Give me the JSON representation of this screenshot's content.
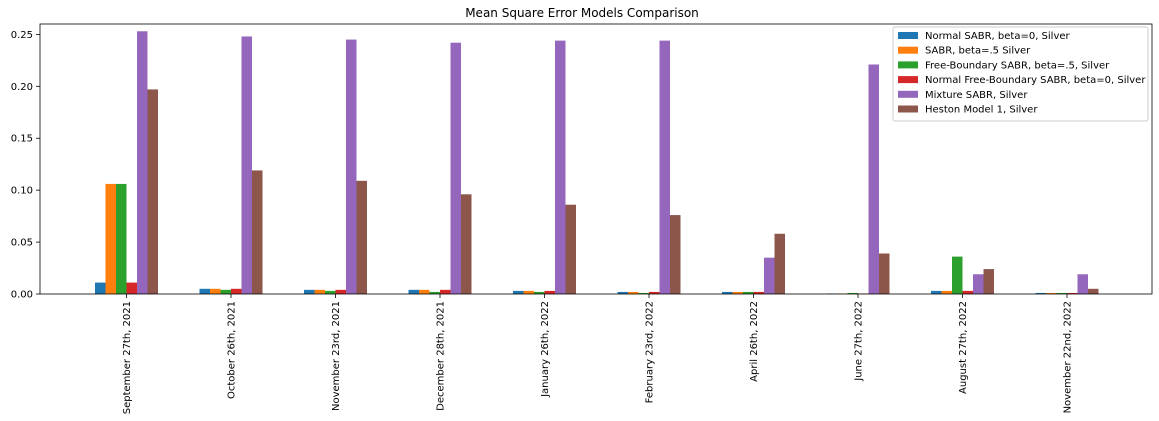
{
  "chart_data": {
    "type": "bar",
    "title": "Mean Square Error Models Comparison",
    "xlabel": "",
    "ylabel": "",
    "ylim": [
      0,
      0.26
    ],
    "yticks": [
      0.0,
      0.05,
      0.1,
      0.15,
      0.2,
      0.25
    ],
    "ytick_labels": [
      "0.00",
      "0.05",
      "0.10",
      "0.15",
      "0.20",
      "0.25"
    ],
    "grid": false,
    "legend_position": "top-right",
    "categories": [
      "September 27th, 2021",
      "October 26th, 2021",
      "November 23rd, 2021",
      "December 28th, 2021",
      "January 26th, 2022",
      "February 23rd, 2022",
      "April 26th, 2022",
      "June 27th, 2022",
      "August 27th, 2022",
      "November 22nd, 2022"
    ],
    "series": [
      {
        "name": "Normal SABR, beta=0, Silver",
        "color": "#1f77b4",
        "values": [
          0.011,
          0.005,
          0.004,
          0.004,
          0.003,
          0.002,
          0.002,
          0.0005,
          0.003,
          0.001
        ]
      },
      {
        "name": "SABR, beta=.5 Silver",
        "color": "#ff7f0e",
        "values": [
          0.106,
          0.005,
          0.004,
          0.004,
          0.003,
          0.002,
          0.002,
          0.0005,
          0.003,
          0.001
        ]
      },
      {
        "name": "Free-Boundary SABR, beta=.5, Silver",
        "color": "#2ca02c",
        "values": [
          0.106,
          0.004,
          0.003,
          0.002,
          0.002,
          0.001,
          0.002,
          0.001,
          0.036,
          0.001
        ]
      },
      {
        "name": "Normal Free-Boundary SABR, beta=0, Silver",
        "color": "#d62728",
        "values": [
          0.011,
          0.005,
          0.004,
          0.004,
          0.003,
          0.002,
          0.002,
          0.0005,
          0.003,
          0.001
        ]
      },
      {
        "name": "Mixture SABR, Silver",
        "color": "#9467bd",
        "values": [
          0.253,
          0.248,
          0.245,
          0.242,
          0.244,
          0.244,
          0.035,
          0.221,
          0.019,
          0.019
        ]
      },
      {
        "name": "Heston Model 1, Silver",
        "color": "#8c564b",
        "values": [
          0.197,
          0.119,
          0.109,
          0.096,
          0.086,
          0.076,
          0.058,
          0.039,
          0.024,
          0.005
        ]
      }
    ]
  }
}
